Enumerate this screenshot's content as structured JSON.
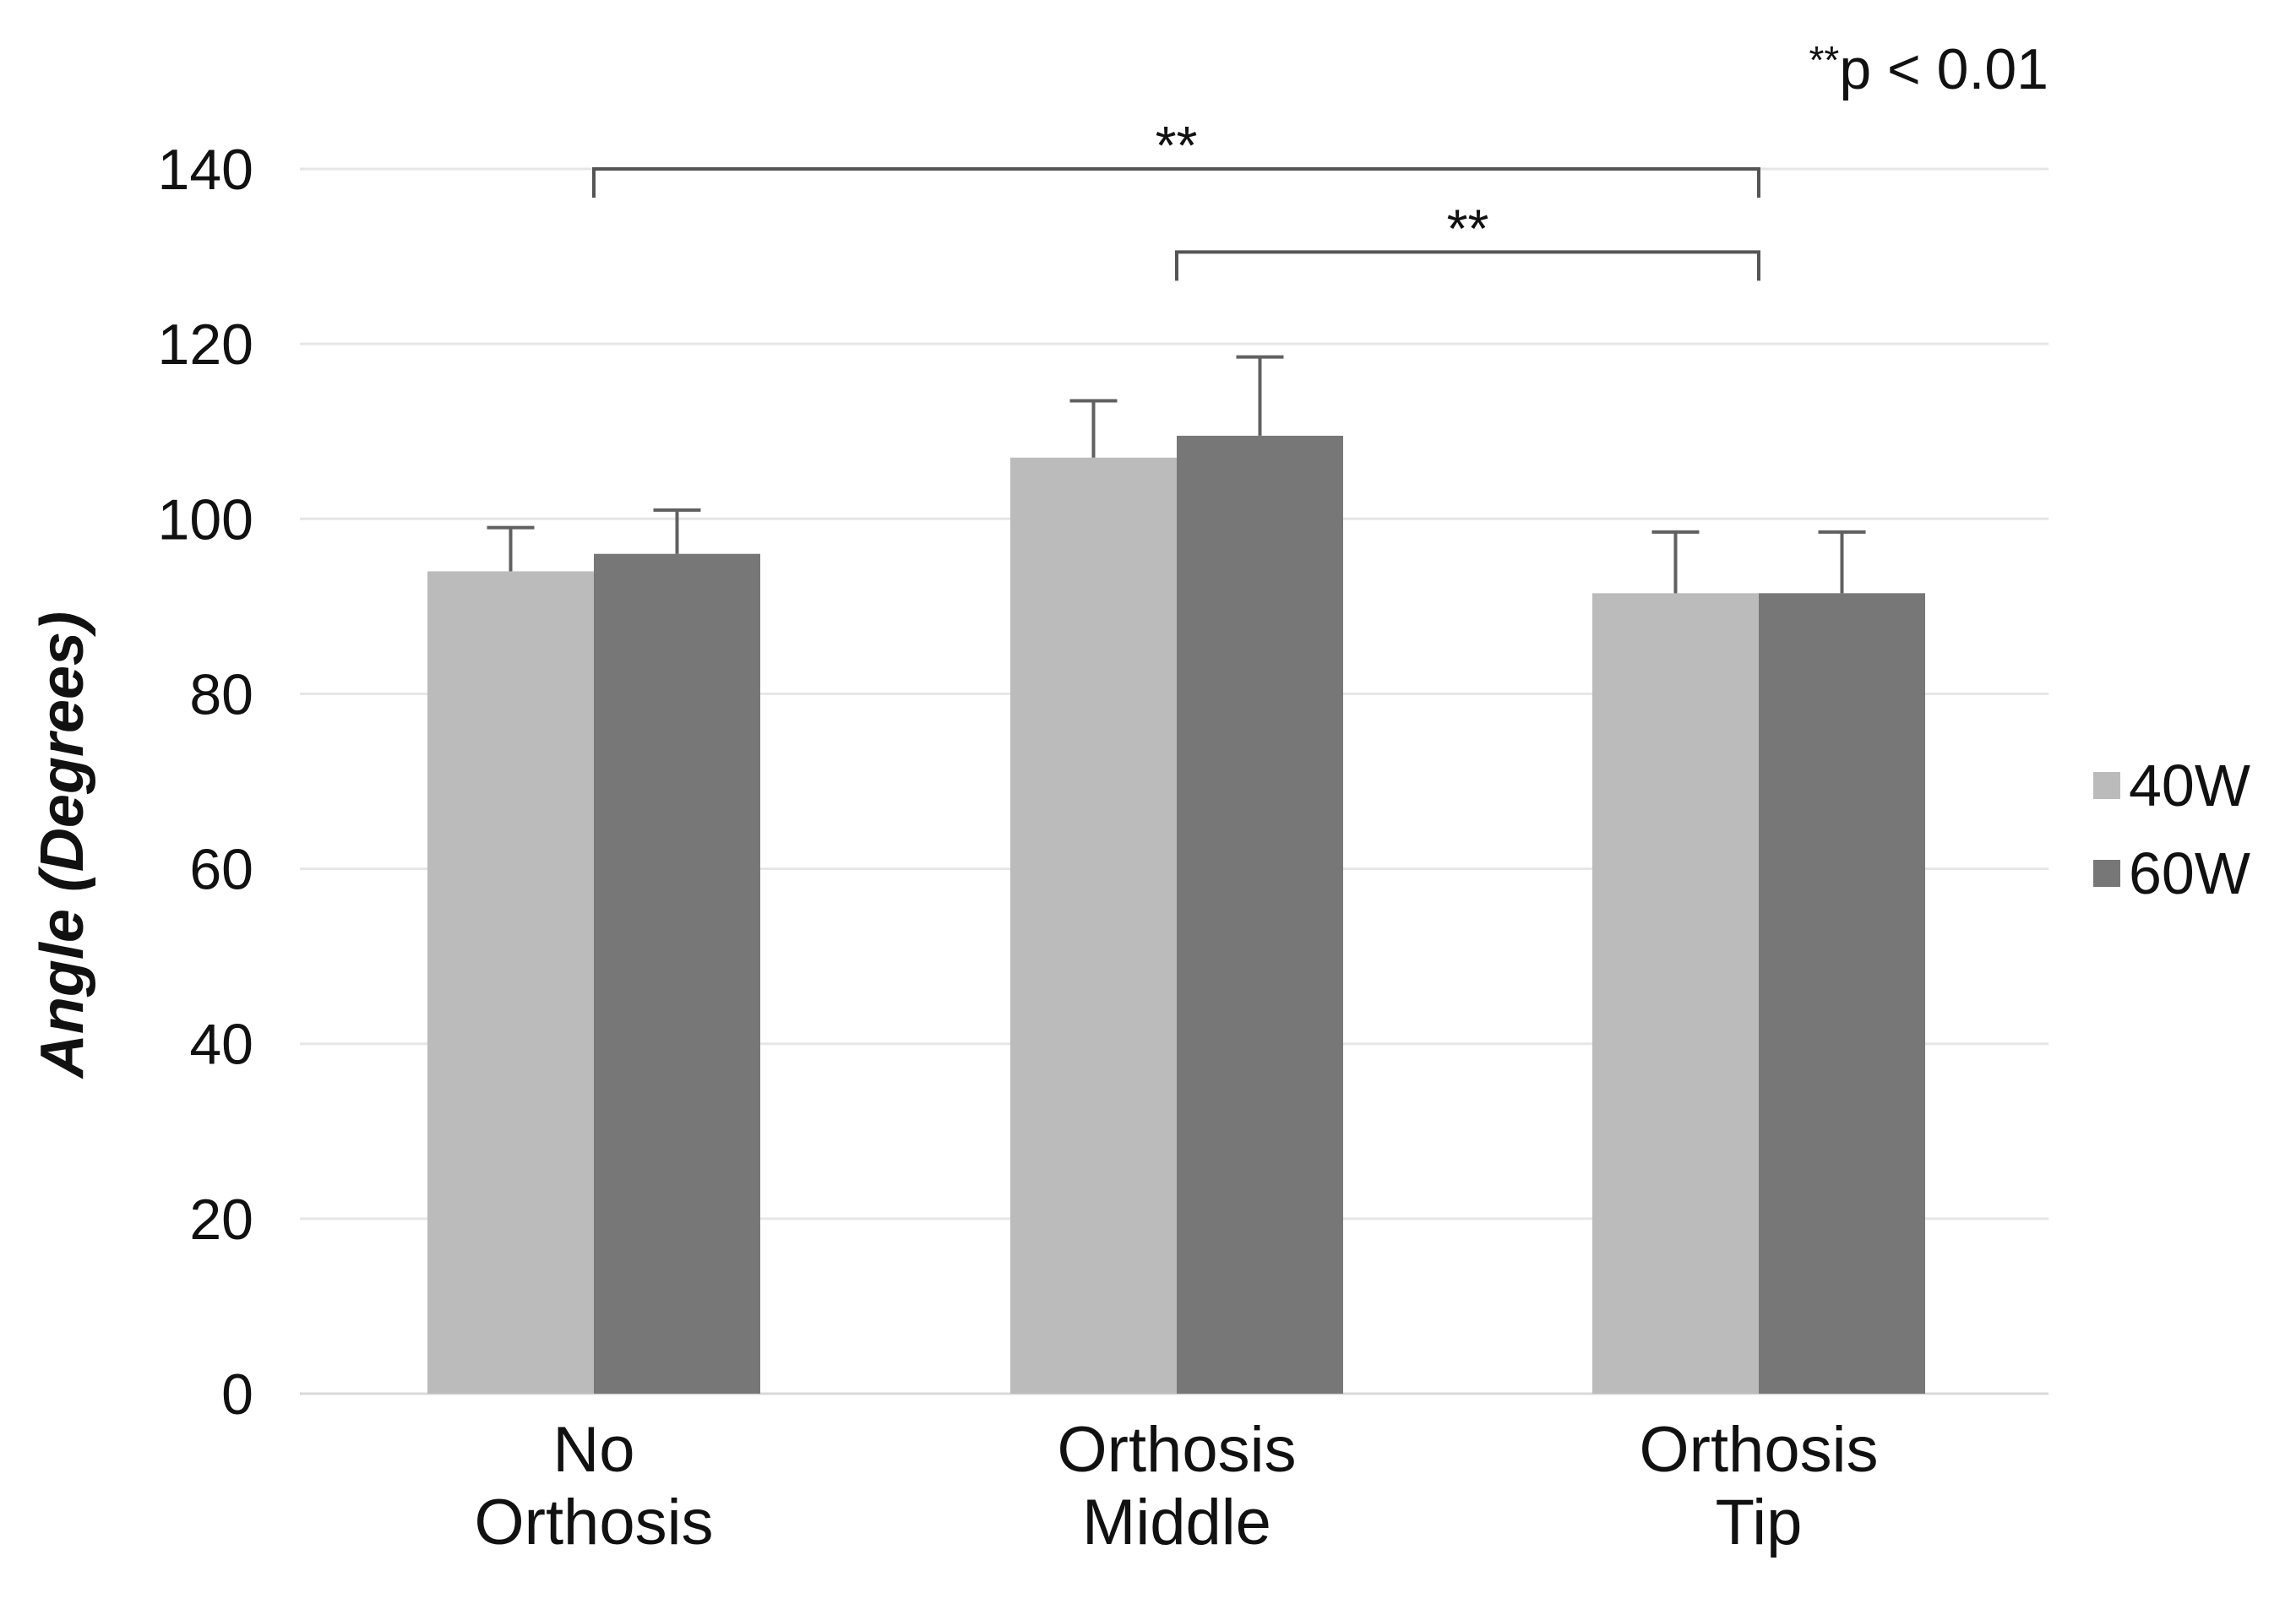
{
  "chart_data": {
    "type": "bar",
    "title": "",
    "xlabel": "",
    "ylabel": "Angle (Degrees)",
    "ylim": [
      0,
      140
    ],
    "yticks": [
      0,
      20,
      40,
      60,
      80,
      100,
      120,
      140
    ],
    "grid": true,
    "categories": [
      [
        "No",
        "Orthosis"
      ],
      [
        "Orthosis",
        "Middle"
      ],
      [
        "Orthosis",
        "Tip"
      ]
    ],
    "series": [
      {
        "name": "40W",
        "color": "#bbbbbb",
        "values": [
          94,
          107,
          91.5
        ],
        "errors": [
          5,
          6.5,
          7
        ]
      },
      {
        "name": "60W",
        "color": "#777777",
        "values": [
          96,
          109.5,
          91.5
        ],
        "errors": [
          5,
          9,
          7
        ]
      }
    ],
    "legend_position": "right",
    "significance": {
      "note_marker": "**",
      "note_text": "p < 0.01",
      "brackets": [
        {
          "from_category": 0,
          "to_category": 2,
          "y": 140,
          "label": "**"
        },
        {
          "from_category": 1,
          "to_category": 2,
          "y": 130.5,
          "label": "**"
        }
      ]
    }
  }
}
